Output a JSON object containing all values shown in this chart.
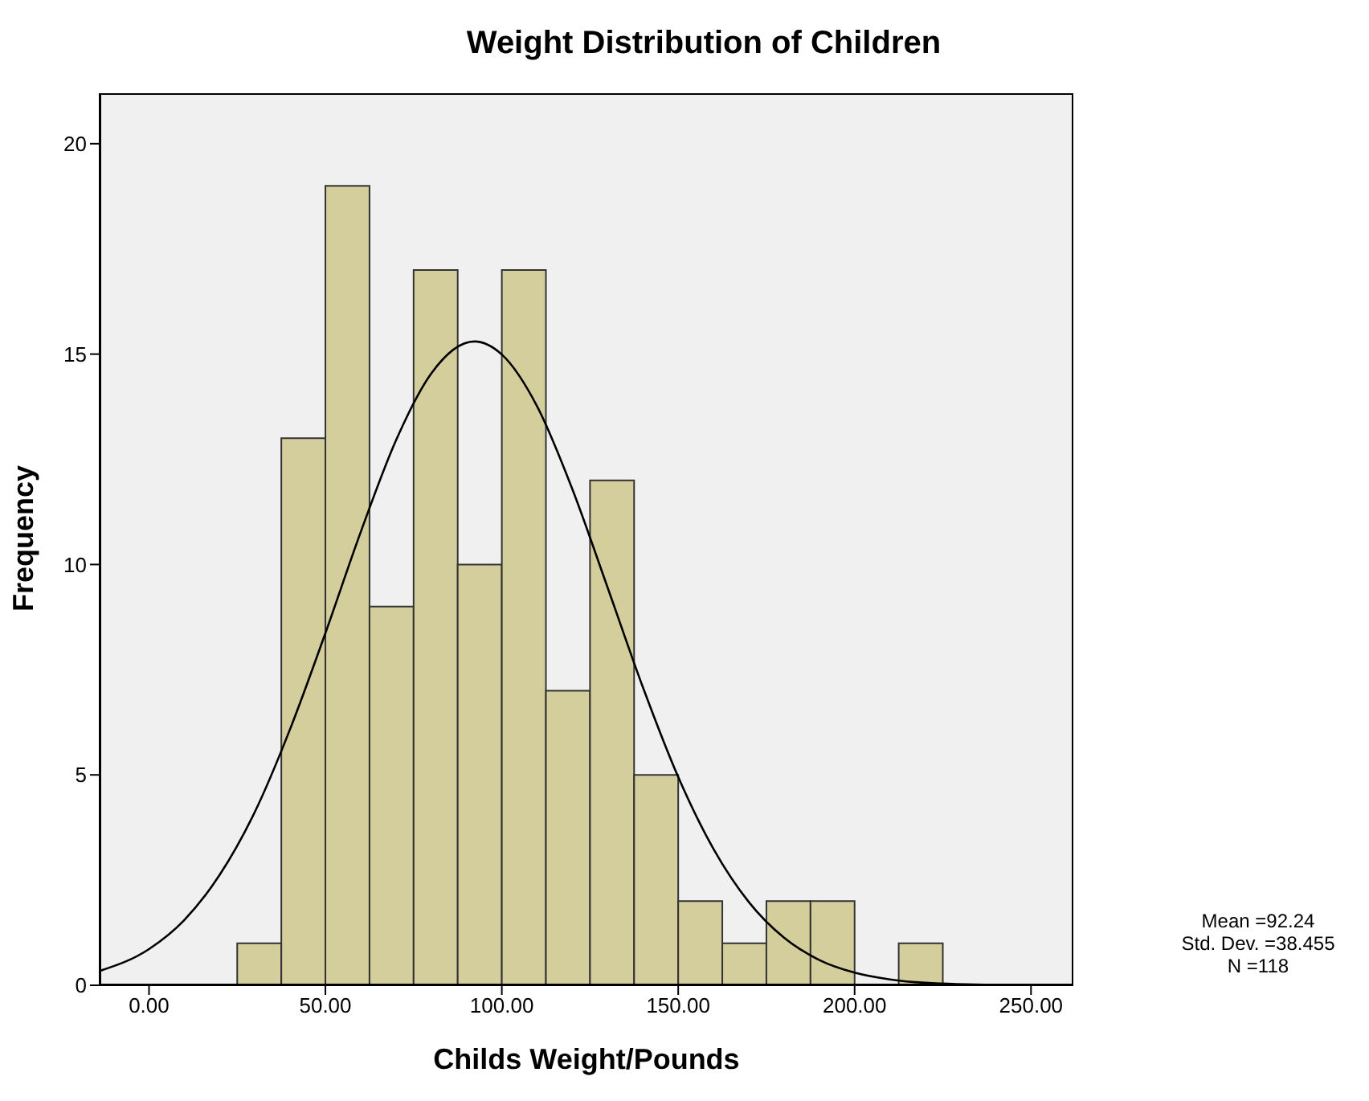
{
  "chart_data": {
    "type": "histogram",
    "title": "Weight Distribution of Children",
    "xlabel": "Childs Weight/Pounds",
    "ylabel": "Frequency",
    "bins": [
      25,
      37.5,
      50,
      62.5,
      75,
      87.5,
      100,
      112.5,
      125,
      137.5,
      150,
      162.5,
      175,
      187.5,
      200,
      212.5,
      225
    ],
    "values": [
      1,
      13,
      19,
      9,
      17,
      10,
      17,
      7,
      12,
      5,
      2,
      1,
      2,
      2,
      0,
      1
    ],
    "color": "#d3ce9b",
    "series": [
      {
        "type": "line",
        "color": "#000000",
        "x": [
          -14,
          0,
          10,
          20,
          30,
          40,
          50,
          60,
          70,
          80,
          92.24,
          100,
          110,
          120,
          130,
          140,
          150,
          160,
          170,
          180,
          190,
          200,
          210,
          220,
          240,
          262
        ],
        "values": [
          0.34,
          0.86,
          1.55,
          2.62,
          4.12,
          6.09,
          8.37,
          10.77,
          12.95,
          14.54,
          15.3,
          14.99,
          13.76,
          11.79,
          9.45,
          7.08,
          4.95,
          3.24,
          1.98,
          1.13,
          0.6,
          0.3,
          0.14,
          0.06,
          0.01,
          0
        ]
      }
    ],
    "xlim": [
      -14,
      262
    ],
    "xticks": [
      {
        "value": 0,
        "label": "0.00"
      },
      {
        "value": 50,
        "label": "50.00"
      },
      {
        "value": 100,
        "label": "100.00"
      },
      {
        "value": 150,
        "label": "150.00"
      },
      {
        "value": 200,
        "label": "200.00"
      },
      {
        "value": 250,
        "label": "250.00"
      }
    ],
    "ylim": [
      0,
      21.2
    ],
    "yticks": [
      0,
      5,
      10,
      15,
      20
    ],
    "annotations": [
      "Mean =92.24",
      "Std. Dev. =38.455",
      "N =118"
    ]
  }
}
